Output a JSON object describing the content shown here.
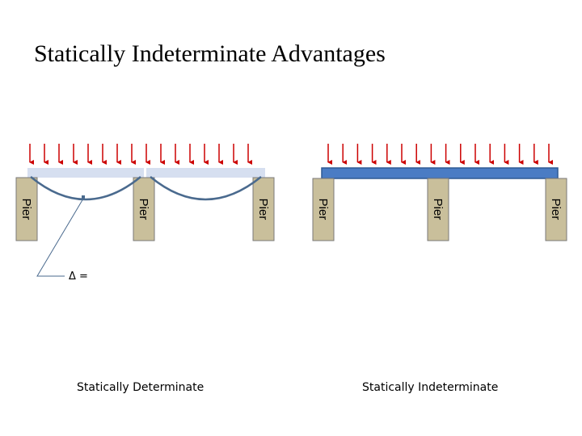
{
  "title": "Statically Indeterminate Advantages",
  "left_caption": "Statically Determinate",
  "right_caption": "Statically Indeterminate",
  "pier_label": "Pier",
  "delta_label": "Δ =",
  "colors": {
    "load_arrow": "#cc0000",
    "pier_fill": "#c9bf9b",
    "pier_border": "#7a7a7a",
    "simple_beam": "#d6dff0",
    "deflected_shape": "#4a6a8e",
    "continuous_beam_fill": "#4a7cc4",
    "continuous_beam_border": "#2e5a94"
  }
}
